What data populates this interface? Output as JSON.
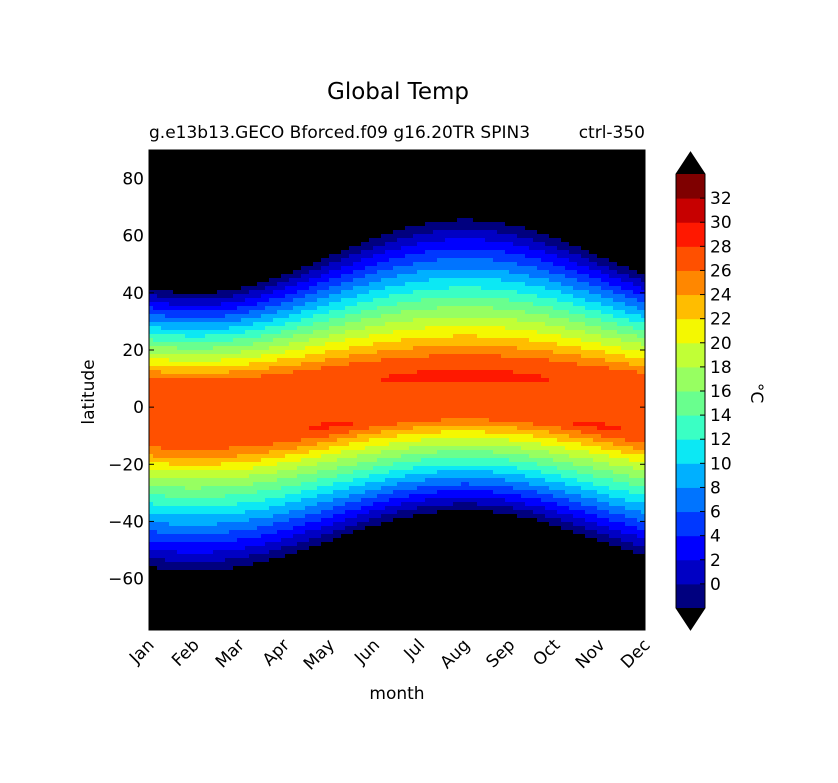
{
  "chart_data": {
    "type": "contourf",
    "title": "Global Temp",
    "subtitle_left": "g.e13b13.GECO Bforced.f09 g16.20TR SPIN3",
    "subtitle_right": "ctrl-350",
    "xlabel": "month",
    "ylabel": "latitude",
    "x_tick_labels": [
      "Jan",
      "Feb",
      "Mar",
      "Apr",
      "May",
      "Jun",
      "Jul",
      "Aug",
      "Sep",
      "Oct",
      "Nov",
      "Dec"
    ],
    "x_range": [
      1,
      12
    ],
    "y_ticks": [
      80,
      60,
      40,
      20,
      0,
      -20,
      -40,
      -60
    ],
    "y_tick_labels": [
      "80",
      "60",
      "40",
      "20",
      "0",
      "−20",
      "−40",
      "−60"
    ],
    "ylim": [
      -78,
      90
    ],
    "colorbar": {
      "label": "°C",
      "levels": [
        -2,
        0,
        2,
        4,
        6,
        8,
        10,
        12,
        14,
        16,
        18,
        20,
        22,
        24,
        26,
        28,
        30,
        32,
        34
      ],
      "tick_labels": [
        "0",
        "2",
        "4",
        "6",
        "8",
        "10",
        "12",
        "14",
        "16",
        "18",
        "20",
        "22",
        "24",
        "26",
        "28",
        "30",
        "32"
      ],
      "extend": "both",
      "colors": [
        "#00007f",
        "#0000c4",
        "#0000ff",
        "#0038ff",
        "#0074ff",
        "#00b0ff",
        "#0ce8f4",
        "#3affc4",
        "#69ff8e",
        "#97ff61",
        "#c1ff36",
        "#f4f801",
        "#ffbd00",
        "#ff8700",
        "#ff5000",
        "#ff1800",
        "#c70000",
        "#7f0000"
      ],
      "under_color": "#000000",
      "over_color": "#000000"
    },
    "field_model": {
      "description": "zonal mean surface temperature by month and latitude",
      "tropical_band_deg_C": 26.7,
      "warmest_band_max_deg_C": 28.3
    }
  }
}
